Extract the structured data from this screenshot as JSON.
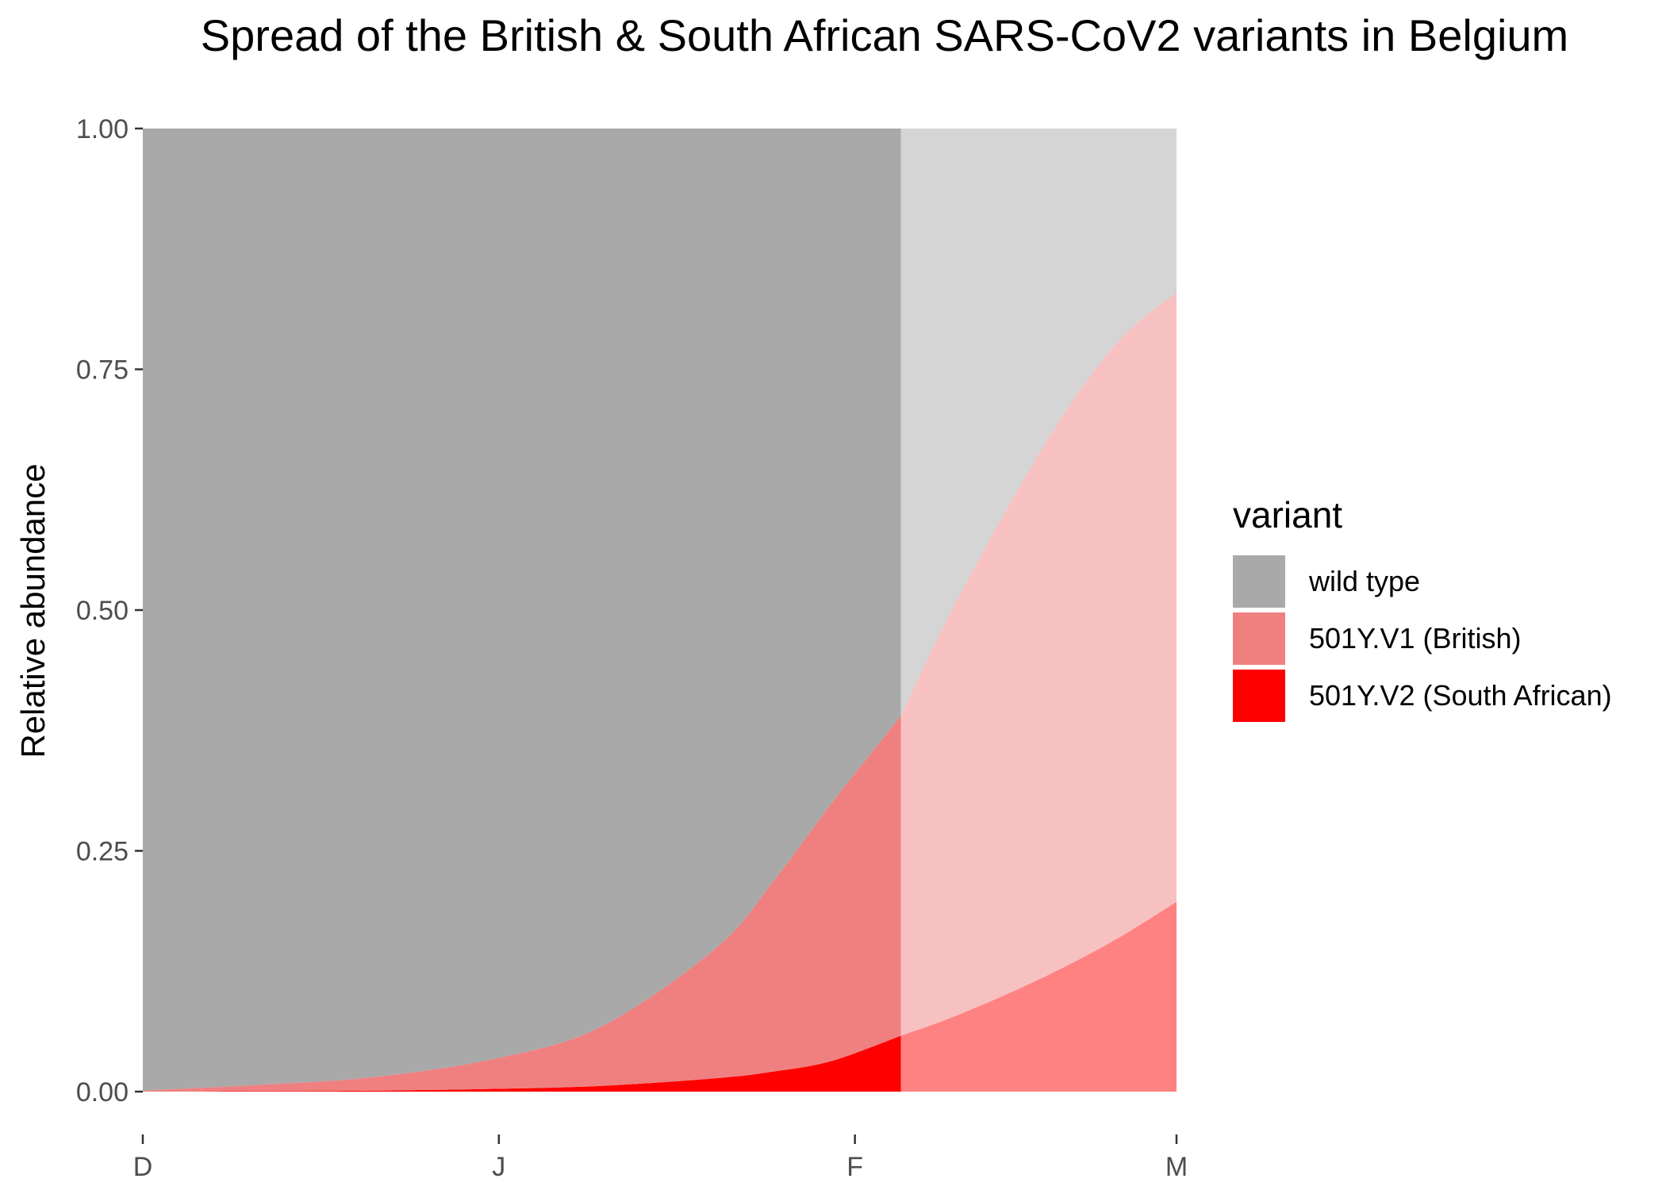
{
  "chart_data": {
    "type": "area",
    "title": "Spread of the British & South African SARS-CoV2 variants in Belgium",
    "xlabel": "",
    "ylabel": "Relative abundance",
    "x_ticks": [
      {
        "label": "D",
        "day": 0
      },
      {
        "label": "J",
        "day": 31
      },
      {
        "label": "F",
        "day": 62
      },
      {
        "label": "M",
        "day": 90
      }
    ],
    "y_ticks": [
      "0.00",
      "0.25",
      "0.50",
      "0.75",
      "1.00"
    ],
    "xlim": [
      0,
      90
    ],
    "ylim": [
      0,
      1
    ],
    "grid": false,
    "forecast_start_day": 66,
    "legend": {
      "title": "variant",
      "position": "right",
      "entries": [
        {
          "label": "wild type",
          "color": "#a9a9a9"
        },
        {
          "label": "501Y.V1 (British)",
          "color": "#f08080"
        },
        {
          "label": "501Y.V2 (South African)",
          "color": "#ff0000"
        }
      ]
    },
    "series": [
      {
        "name": "501Y.V2 (South African)",
        "color": "#ff0000",
        "x": [
          0,
          10,
          20,
          31,
          40,
          50,
          55,
          60,
          66,
          70,
          75,
          80,
          85,
          90
        ],
        "cumulative": [
          0.0,
          0.0005,
          0.001,
          0.003,
          0.006,
          0.014,
          0.021,
          0.032,
          0.058,
          0.075,
          0.1,
          0.128,
          0.16,
          0.197
        ]
      },
      {
        "name": "501Y.V1 (British)",
        "color": "#f08080",
        "x": [
          0,
          10,
          20,
          31,
          40,
          50,
          55,
          60,
          66,
          70,
          75,
          80,
          85,
          90
        ],
        "cumulative": [
          0.001,
          0.007,
          0.015,
          0.035,
          0.068,
          0.15,
          0.22,
          0.3,
          0.39,
          0.49,
          0.6,
          0.7,
          0.78,
          0.83
        ]
      },
      {
        "name": "wild type",
        "color": "#a9a9a9",
        "x": [
          0,
          90
        ],
        "cumulative": [
          1.0,
          1.0
        ]
      }
    ]
  }
}
